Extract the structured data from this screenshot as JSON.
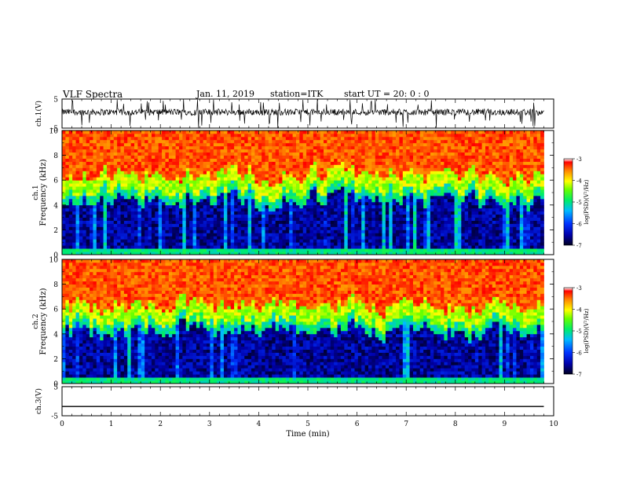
{
  "header": {
    "title": "VLF Spectra",
    "date": "Jan. 11, 2019",
    "station": "station=ITK",
    "start": "start  UT =  20: 0  : 0"
  },
  "colors": {
    "background": "#ffffff",
    "axis": "#000000",
    "trace": "#000000",
    "colormap_low": "#000033",
    "colormap_high": "#ff0000"
  },
  "chart_data": [
    {
      "id": "ch1-waveform",
      "type": "line",
      "ylabel": "ch.1(V)",
      "ylim": [
        -5,
        5
      ],
      "yticks": [
        "5",
        "-5"
      ],
      "xlim": [
        0,
        10
      ],
      "description_series": [
        {
          "values_range_V": [
            -5,
            5
          ],
          "baseline_V": 0.5
        }
      ]
    },
    {
      "id": "ch1-spectrogram",
      "type": "heatmap",
      "ylabel": "ch.1\nFrequency (kHz)",
      "ylim": [
        0,
        10
      ],
      "yticks": [
        "0",
        "2",
        "4",
        "6",
        "8",
        "10"
      ],
      "xlim": [
        0,
        10
      ],
      "band_edges_kHz": {
        "dark_below": 4.5,
        "green_band": 5.2,
        "yellow_band": 6.5,
        "red_above": 7.0
      },
      "colorbar": {
        "label": "log(PSD)(V²/Hz)",
        "range": [
          -7,
          -3
        ],
        "ticks": [
          "-3",
          "-4",
          "-5",
          "-6",
          "-7"
        ]
      }
    },
    {
      "id": "ch2-spectrogram",
      "type": "heatmap",
      "ylabel": "ch.2\nFrequency (kHz)",
      "ylim": [
        0,
        10
      ],
      "yticks": [
        "0",
        "2",
        "4",
        "6",
        "8",
        "10"
      ],
      "xlim": [
        0,
        10
      ],
      "band_edges_kHz": {
        "dark_below": 4.3,
        "green_band": 5.0,
        "yellow_band": 6.3,
        "red_above": 7.0
      },
      "colorbar": {
        "label": "log(PSD)(V²/Hz)",
        "range": [
          -7,
          -3
        ],
        "ticks": [
          "-3",
          "-4",
          "-5",
          "-6",
          "-7"
        ]
      }
    },
    {
      "id": "ch3-waveform",
      "type": "line",
      "ylabel": "ch.3(V)",
      "ylim": [
        -5,
        5
      ],
      "yticks": [
        "5",
        "-5"
      ],
      "xlim": [
        0,
        10
      ],
      "constant_value_V": -1.8
    }
  ],
  "xaxis": {
    "label": "Time (min)",
    "ticks": [
      "0",
      "1",
      "2",
      "3",
      "4",
      "5",
      "6",
      "7",
      "8",
      "9",
      "10"
    ],
    "data_end_min": 9.8
  }
}
